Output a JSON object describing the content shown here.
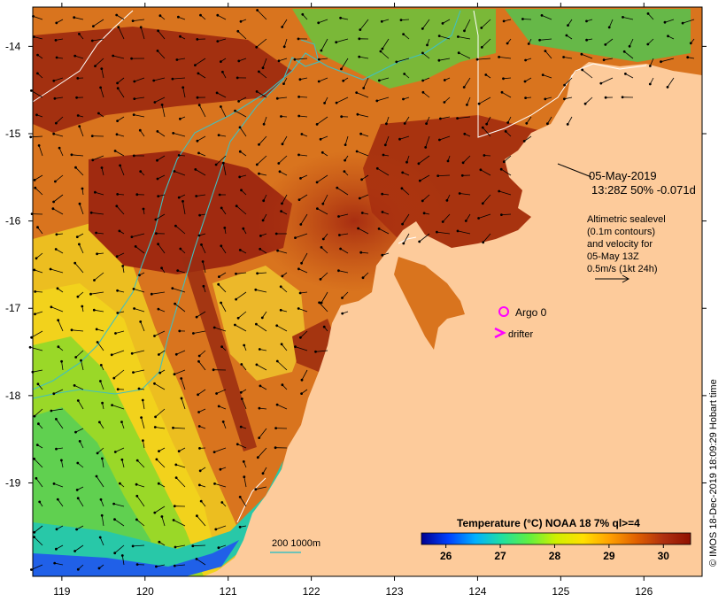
{
  "map": {
    "x_ticks": [
      "119",
      "120",
      "121",
      "122",
      "123",
      "124",
      "125",
      "126"
    ],
    "y_ticks": [
      "-14",
      "-15",
      "-16",
      "-17",
      "-18",
      "-19"
    ],
    "x_range": [
      118.65,
      126.7
    ],
    "y_range": [
      -20.07,
      -13.55
    ]
  },
  "annotation": {
    "date": "05-May-2019",
    "pass": "13:28Z  50% -0.071d",
    "legend_lines": [
      "Altimetric sealevel",
      "(0.1m contours)",
      "and velocity for",
      "05-May 13Z",
      "0.5m/s (1kt 24h)"
    ]
  },
  "markers": {
    "argo_label": "Argo 0",
    "drifter_label": "drifter",
    "argo_color": "#ff00ff",
    "drifter_color": "#ff00ff"
  },
  "isobath": {
    "label": "200  1000m",
    "color": "#40c0c0"
  },
  "colorbar": {
    "title": "Temperature (°C) NOAA 18 7% ql>=4",
    "ticks": [
      "26",
      "27",
      "28",
      "29",
      "30"
    ],
    "range": [
      25.55,
      30.5
    ],
    "colors": [
      "#000090",
      "#0040ff",
      "#00b0ff",
      "#20e0a0",
      "#60f040",
      "#d0f000",
      "#ffe000",
      "#ffa000",
      "#e06000",
      "#b03010",
      "#901000"
    ]
  },
  "credit": "© IMOS 18-Dec-2019 18:09:29 Hobart time"
}
